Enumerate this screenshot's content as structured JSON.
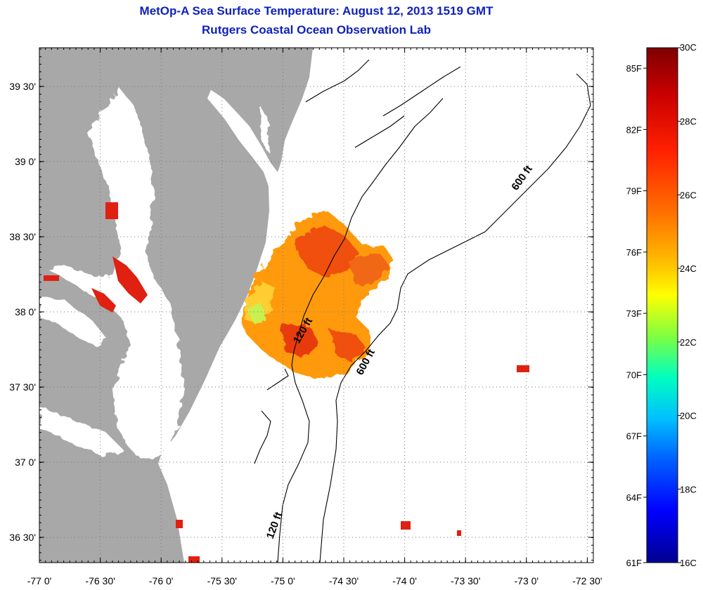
{
  "title": "MetOp-A Sea Surface Temperature:  August 12, 2013 1519 GMT",
  "subtitle": "Rutgers Coastal Ocean Observation Lab",
  "lat_ticks": [
    "39 30'",
    "39 0'",
    "38 30'",
    "38 0'",
    "37 30'",
    "37 0'",
    "36 30'"
  ],
  "lon_ticks": [
    "-77 0'",
    "-76 30'",
    "-76 0'",
    "-75 30'",
    "-75 0'",
    "-74 30'",
    "-74 0'",
    "-73 30'",
    "-73 0'",
    "-72 30'"
  ],
  "isobath_labels": {
    "a": "120 ft",
    "b": "600 ft",
    "c": "600 ft",
    "d": "120 ft"
  },
  "colorbar": {
    "celsius": [
      "30C",
      "28C",
      "26C",
      "24C",
      "22C",
      "20C",
      "18C",
      "16C"
    ],
    "fahrenheit": [
      "85F",
      "82F",
      "79F",
      "76F",
      "73F",
      "70F",
      "67F",
      "64F",
      "61F"
    ],
    "colors": [
      "#800000",
      "#d01010",
      "#ff4000",
      "#ff8000",
      "#ffc000",
      "#ffff00",
      "#80ff40",
      "#00ffc0",
      "#00c0ff",
      "#0060ff",
      "#0000ff",
      "#000090"
    ]
  },
  "colors": {
    "land": "#a8a8a8",
    "title": "#1022b8",
    "grid": "#777777"
  }
}
